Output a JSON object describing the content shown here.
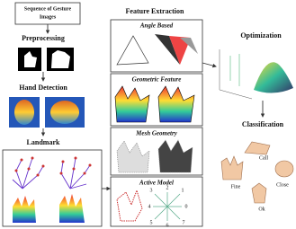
{
  "left": {
    "input": [
      "Sequence of Gesture",
      "Images"
    ],
    "steps": [
      "Preprocessing",
      "Hand Detection",
      "Landmark"
    ]
  },
  "middle": {
    "title": "Feature Extraction",
    "features": [
      "Angle Based",
      "Geometric Feature",
      "Mesh Geometry",
      "Active Model"
    ],
    "digits": [
      "1",
      "3",
      "2",
      "4",
      "5",
      "6",
      "7",
      "0"
    ]
  },
  "right": {
    "steps": [
      "Optimization",
      "Classification"
    ],
    "classes": [
      "Call",
      "Fine",
      "Close",
      "Ok"
    ]
  }
}
